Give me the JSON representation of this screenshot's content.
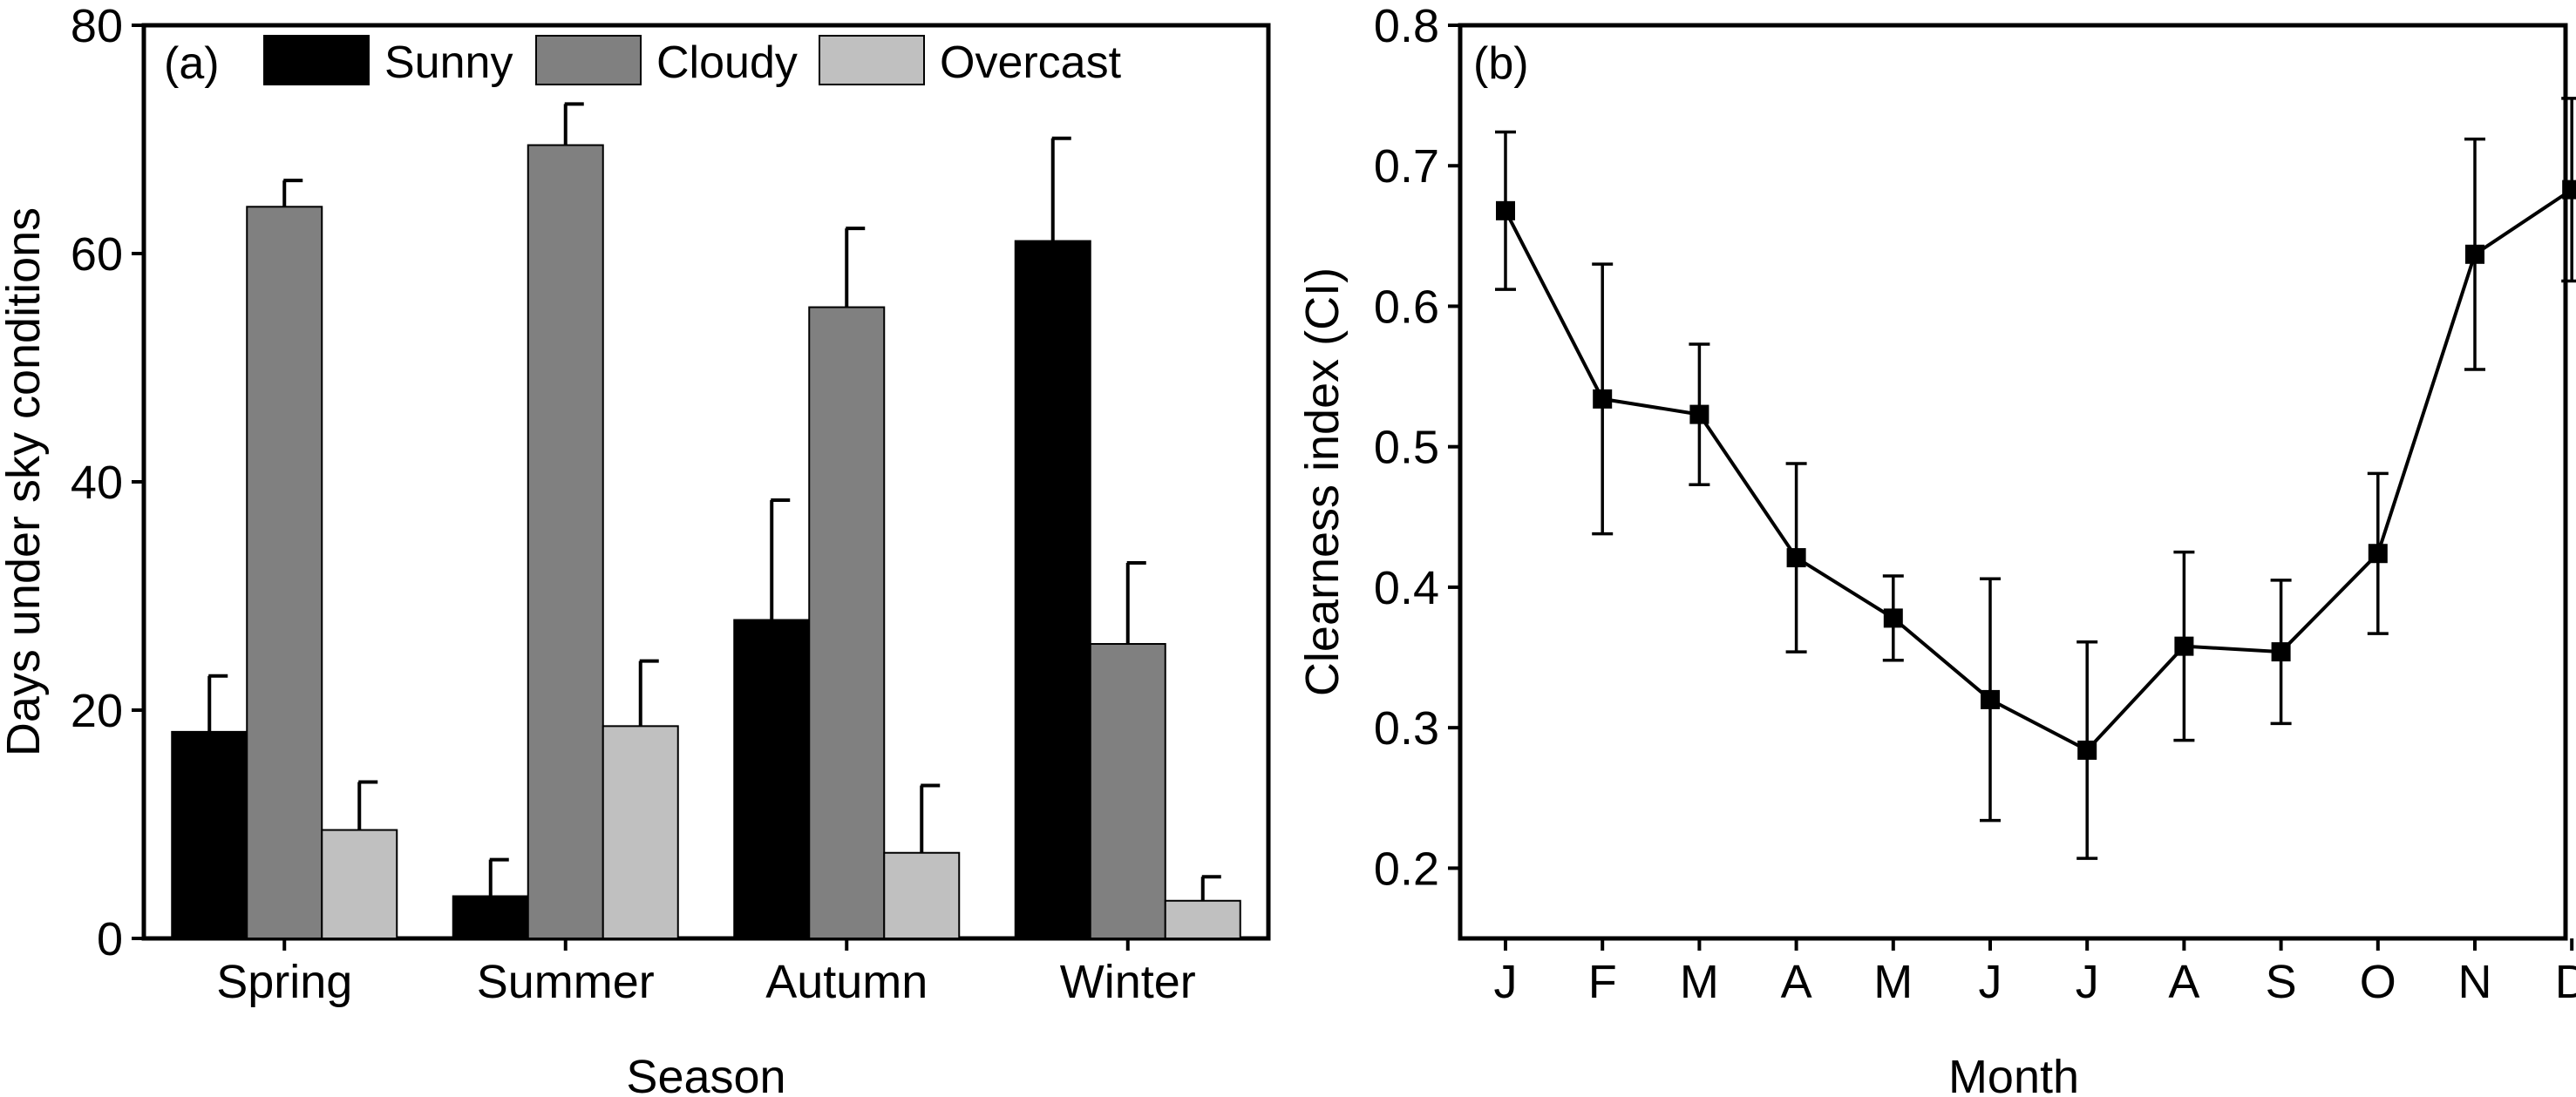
{
  "chart_data": [
    {
      "panel": "(a)",
      "type": "bar",
      "xlabel": "Season",
      "ylabel": "Days under sky conditions",
      "ylim": [
        0,
        80
      ],
      "yticks": [
        0,
        20,
        40,
        60,
        80
      ],
      "categories": [
        "Spring",
        "Summer",
        "Autumn",
        "Winter"
      ],
      "series": [
        {
          "name": "Sunny",
          "color": "#000000",
          "values": [
            18.1,
            3.7,
            27.9,
            61.1
          ],
          "errors": [
            4.9,
            3.2,
            10.5,
            9.0
          ]
        },
        {
          "name": "Cloudy",
          "color": "#808080",
          "values": [
            64.1,
            69.5,
            55.3,
            25.8
          ],
          "errors": [
            2.3,
            3.6,
            6.9,
            7.1
          ]
        },
        {
          "name": "Overcast",
          "color": "#c0c0c0",
          "values": [
            9.5,
            18.6,
            7.5,
            3.3
          ],
          "errors": [
            4.2,
            5.7,
            5.9,
            2.1
          ]
        }
      ],
      "legend_position": "top"
    },
    {
      "panel": "(b)",
      "type": "line",
      "xlabel": "Month",
      "ylabel": "Clearness index (CI)",
      "ylim": [
        0.15,
        0.8
      ],
      "yticks": [
        0.2,
        0.3,
        0.4,
        0.5,
        0.6,
        0.7,
        0.8
      ],
      "categories": [
        "J",
        "F",
        "M",
        "A",
        "M",
        "J",
        "J",
        "A",
        "S",
        "O",
        "N",
        "D"
      ],
      "series": [
        {
          "color": "#000000",
          "values": [
            0.668,
            0.534,
            0.523,
            0.421,
            0.378,
            0.32,
            0.284,
            0.358,
            0.354,
            0.424,
            0.637,
            0.683
          ],
          "errors": [
            0.056,
            0.096,
            0.05,
            0.067,
            0.03,
            0.086,
            0.077,
            0.067,
            0.051,
            0.057,
            0.082,
            0.065
          ]
        }
      ]
    }
  ]
}
